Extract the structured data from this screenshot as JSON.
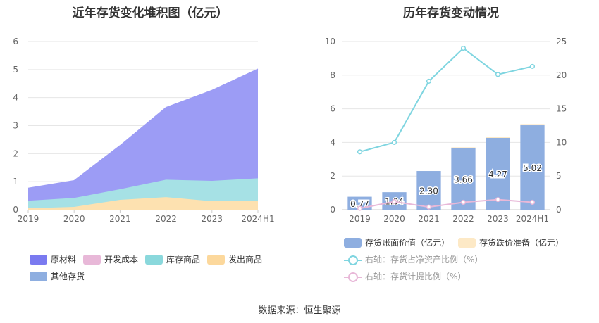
{
  "left_title": "近年存货变化堆积图（亿元）",
  "right_title": "历年存货变动情况",
  "source": "数据来源：恒生聚源",
  "chart_data": [
    {
      "type": "area",
      "title": "近年存货变化堆积图（亿元）",
      "x": [
        "2019",
        "2020",
        "2021",
        "2022",
        "2023",
        "2024H1"
      ],
      "ylim": [
        0,
        6
      ],
      "yticks": [
        0,
        1,
        2,
        3,
        4,
        5,
        6
      ],
      "grid": true,
      "legend_position": "bottom",
      "series": [
        {
          "name": "发出商品",
          "color": "#fde1b0",
          "values": [
            0.05,
            0.1,
            0.35,
            0.45,
            0.3,
            0.32
          ]
        },
        {
          "name": "开发成本",
          "color": "#e8b8d8",
          "values": [
            0,
            0,
            0,
            0,
            0,
            0
          ]
        },
        {
          "name": "库存商品",
          "color": "#a6e1e5",
          "values": [
            0.27,
            0.32,
            0.38,
            0.62,
            0.73,
            0.8
          ]
        },
        {
          "name": "原材料",
          "color": "#9c9cf5",
          "values": [
            0.45,
            0.62,
            1.56,
            2.58,
            3.23,
            3.9
          ]
        },
        {
          "name": "其他存货",
          "color": "#8eaee0",
          "values": [
            0,
            0,
            0,
            0,
            0,
            0
          ]
        }
      ],
      "legend_order": [
        "原材料",
        "开发成本",
        "库存商品",
        "发出商品",
        "其他存货"
      ],
      "legend_colors": {
        "原材料": "#7a7af0",
        "开发成本": "#e8b8d8",
        "库存商品": "#8ad8dc",
        "发出商品": "#fcd89c",
        "其他存货": "#8eaee0"
      }
    },
    {
      "type": "bar",
      "title": "历年存货变动情况",
      "categories": [
        "2019",
        "2020",
        "2021",
        "2022",
        "2023",
        "2024H1"
      ],
      "ylim": [
        0,
        10
      ],
      "yticks": [
        0,
        2,
        4,
        6,
        8,
        10
      ],
      "y2lim": [
        0,
        25
      ],
      "y2ticks": [
        0,
        5,
        10,
        15,
        20,
        25
      ],
      "grid": true,
      "legend_position": "bottom",
      "series": [
        {
          "name": "存货账面价值（亿元）",
          "axis": "left",
          "type": "bar",
          "color": "#8eaee0",
          "values": [
            0.77,
            1.04,
            2.3,
            3.66,
            4.27,
            5.02
          ],
          "labels": [
            "0.77",
            "1.04",
            "2.30",
            "3.66",
            "4.27",
            "5.02"
          ]
        },
        {
          "name": "存货跌价准备（亿元）",
          "axis": "left",
          "type": "bar",
          "color": "#fde9c6",
          "values": [
            0,
            0,
            0,
            0.05,
            0.08,
            0.07
          ]
        },
        {
          "name": "右轴：存货占净资产比例（%）",
          "axis": "right",
          "type": "line",
          "color": "#7fd5e0",
          "values": [
            8.6,
            10.0,
            19.1,
            24.0,
            20.1,
            21.3
          ]
        },
        {
          "name": "右轴：存货计提比例（%）",
          "axis": "right",
          "type": "line",
          "color": "#e8b8d8",
          "values": [
            0.2,
            1.2,
            0.4,
            1.1,
            1.5,
            1.1
          ]
        }
      ]
    }
  ]
}
